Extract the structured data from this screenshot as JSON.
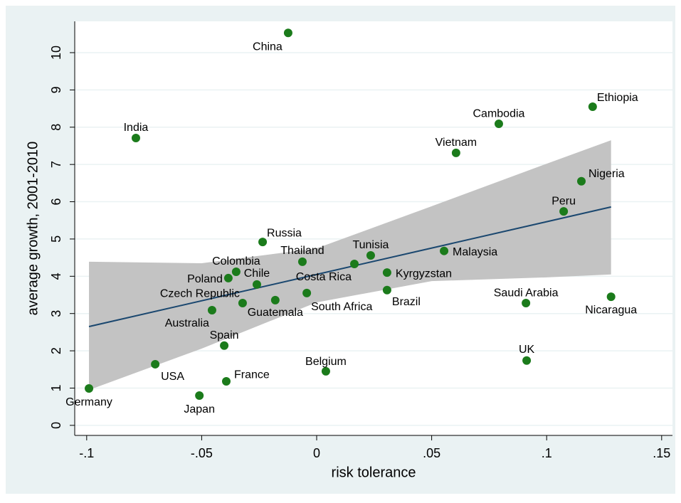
{
  "chart_data": {
    "type": "scatter",
    "xlabel": "risk tolerance",
    "ylabel": "average growth, 2001-2010",
    "labels": [
      "China",
      "India",
      "Cambodia",
      "Ethiopia",
      "Vietnam",
      "Nigeria",
      "Peru",
      "Russia",
      "Thailand",
      "Tunisia",
      "Malaysia",
      "Colombia",
      "Poland",
      "Chile",
      "Costa Rica",
      "Kyrgyzstan",
      "Brazil",
      "Czech Republic",
      "Guatemala",
      "Australia",
      "South Africa",
      "Saudi Arabia",
      "Nicaragua",
      "Spain",
      "UK",
      "USA",
      "Belgium",
      "France",
      "Japan",
      "Germany"
    ],
    "x": [
      -0.0124,
      -0.0786,
      0.0792,
      0.12,
      0.0606,
      0.1151,
      0.1074,
      -0.0235,
      -0.0062,
      0.0235,
      0.0554,
      -0.035,
      -0.0384,
      -0.026,
      0.0164,
      0.0306,
      0.0306,
      -0.0322,
      -0.018,
      -0.0455,
      -0.0043,
      0.091,
      0.128,
      -0.0402,
      0.0913,
      -0.0702,
      0.004,
      -0.0393,
      -0.051,
      -0.099
    ],
    "values": [
      10.53,
      7.71,
      8.09,
      8.55,
      7.31,
      6.55,
      5.74,
      4.92,
      4.39,
      4.56,
      4.68,
      4.12,
      3.95,
      3.78,
      4.33,
      4.1,
      3.63,
      3.28,
      3.36,
      3.09,
      3.55,
      3.28,
      3.45,
      2.14,
      1.74,
      1.64,
      1.45,
      1.18,
      0.8,
      0.99
    ],
    "color": "#1b7b1b",
    "fit_line": {
      "x": [
        -0.099,
        0.128
      ],
      "values": [
        2.65,
        5.86
      ],
      "color": "#1a476f"
    },
    "ci_band": {
      "x": [
        -0.099,
        -0.05,
        0,
        0.05,
        0.1,
        0.128
      ],
      "upper": [
        4.39,
        4.35,
        4.75,
        5.88,
        7.02,
        7.65
      ],
      "lower": [
        0.95,
        2.06,
        3.3,
        3.87,
        3.97,
        4.05
      ],
      "color": "#c3c3c3"
    },
    "xlim": [
      -0.1052,
      0.1547
    ],
    "ylim": [
      -0.27,
      10.84
    ],
    "xticks": [
      {
        "value": -0.1,
        "label": "-.1"
      },
      {
        "value": -0.05,
        "label": "-.05"
      },
      0,
      {
        "value": 0.05,
        "label": ".05"
      },
      {
        "value": 0.1,
        "label": ".1"
      },
      {
        "value": 0.15,
        "label": ".15"
      }
    ],
    "yticks": [
      0,
      1,
      2,
      3,
      4,
      5,
      6,
      7,
      8,
      9,
      10
    ],
    "grid": true
  }
}
